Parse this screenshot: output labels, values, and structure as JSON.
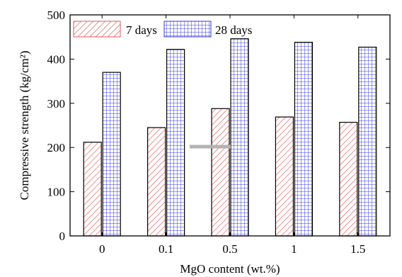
{
  "chart_data": {
    "type": "bar",
    "categories": [
      "0",
      "0.1",
      "0.5",
      "1",
      "1.5"
    ],
    "series": [
      {
        "name": "7 days",
        "values": [
          212,
          245,
          288,
          269,
          257
        ],
        "color": "#e05a5a",
        "pattern": "diagonal-hatch"
      },
      {
        "name": "28 days",
        "values": [
          370,
          422,
          446,
          438,
          427
        ],
        "color": "#3a3ad8",
        "pattern": "grid-hatch"
      }
    ],
    "xlabel": "MgO content (wt.%)",
    "ylabel": "Compressive strength (kg/cm²)",
    "ylim": [
      0,
      500
    ],
    "yticks": [
      0,
      100,
      200,
      300,
      400,
      500
    ],
    "legend_position": "top-left",
    "grid": false
  }
}
